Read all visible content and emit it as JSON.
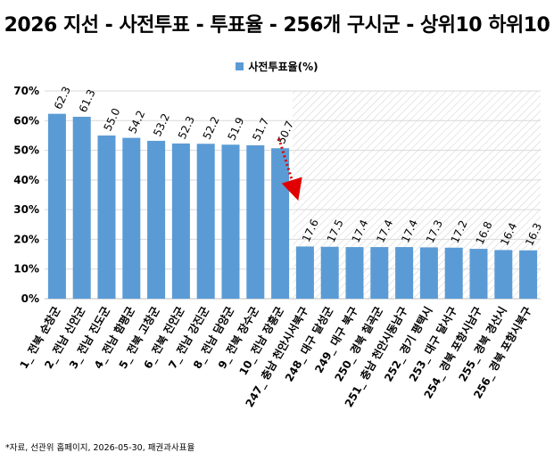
{
  "chart_data": {
    "type": "bar",
    "title": "2026 지선 - 사전투표 - 투표율 - 256개 구시군 - 상위10 하위10",
    "categories": [
      "1_ 전북 순창군",
      "2_ 전남 신안군",
      "3_ 전남 진도군",
      "4_ 전남 함평군",
      "5_ 전북 고창군",
      "6_ 전북 진안군",
      "7_ 전남 강진군",
      "8_ 전남 담양군",
      "9_ 전북 장수군",
      "10_ 전남 장흥군",
      "247_ 충남 천안시서북구",
      "248_ 대구 달성군",
      "249_ 대구 북구",
      "250_ 경북 칠곡군",
      "251_ 충남 천안시동남구",
      "252_ 경기 평택시",
      "253_ 대구 달서구",
      "254_ 경북 포항시남구",
      "255_ 경북 경산시",
      "256_ 경북 포항시북구"
    ],
    "series": [
      {
        "name": "사전투표율(%)",
        "values": [
          62.3,
          61.3,
          55.0,
          54.2,
          53.2,
          52.3,
          52.2,
          51.9,
          51.7,
          50.7,
          17.6,
          17.5,
          17.4,
          17.4,
          17.4,
          17.3,
          17.2,
          16.8,
          16.4,
          16.3
        ]
      }
    ],
    "data_labels": [
      "62.3",
      "61.3",
      "55.0",
      "54.2",
      "53.2",
      "52.3",
      "52.2",
      "51.9",
      "51.7",
      "50.7",
      "17.6",
      "17.5",
      "17.4",
      "17.4",
      "17.4",
      "17.3",
      "17.2",
      "16.8",
      "16.4",
      "16.3"
    ],
    "y_ticks": [
      "0%",
      "10%",
      "20%",
      "30%",
      "40%",
      "50%",
      "60%",
      "70%"
    ],
    "ylim": [
      0,
      70
    ],
    "grid": true,
    "legend_position": "top",
    "bar_color": "#5b9bd5",
    "arrow_color": "#e00000",
    "hatched_region": "bottom 10 (250.7% → 17.6 range), hatched above bars"
  },
  "footnote": "*자료, 선관위 홈페이지, 2026-05-30, 패권과사표율"
}
